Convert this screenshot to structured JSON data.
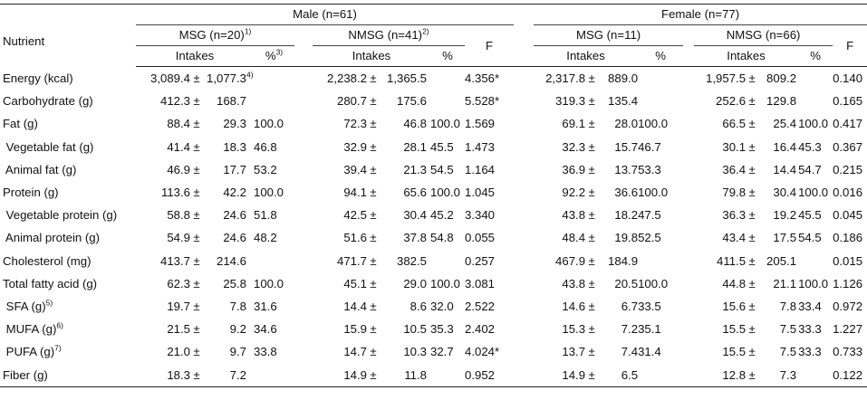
{
  "headers": {
    "nutrient": "Nutrient",
    "male": "Male (n=61)",
    "female": "Female (n=77)",
    "msg_male": "MSG (n=20)",
    "msg_male_sup": "1)",
    "nmsg_male": "NMSG (n=41)",
    "nmsg_male_sup": "2)",
    "msg_female": "MSG (n=11)",
    "nmsg_female": "NMSG (n=66)",
    "f": "F",
    "intakes": "Intakes",
    "pct": "%",
    "pct_sup": "3)"
  },
  "rows": [
    {
      "label": "Energy (kcal)",
      "label_sup": "",
      "m_msg_mean": "3,089.4",
      "m_msg_sd": "1,077.3",
      "m_msg_sd_sup": "4)",
      "m_msg_pct": "",
      "m_nmsg_mean": "2,238.2",
      "m_nmsg_sd": "1,365.5",
      "m_nmsg_pct": "",
      "m_f": "4.356*",
      "f_msg_mean": "2,317.8",
      "f_msg_sd": "889.0",
      "f_msg_pct": "",
      "f_nmsg_mean": "1,957.5",
      "f_nmsg_sd": "809.2",
      "f_nmsg_pct": "",
      "f_f": "0.140"
    },
    {
      "label": "Carbohydrate (g)",
      "label_sup": "",
      "m_msg_mean": "412.3",
      "m_msg_sd": "168.7",
      "m_msg_sd_sup": "",
      "m_msg_pct": "",
      "m_nmsg_mean": "280.7",
      "m_nmsg_sd": "175.6",
      "m_nmsg_pct": "",
      "m_f": "5.528*",
      "f_msg_mean": "319.3",
      "f_msg_sd": "135.4",
      "f_msg_pct": "",
      "f_nmsg_mean": "252.6",
      "f_nmsg_sd": "129.8",
      "f_nmsg_pct": "",
      "f_f": "0.165"
    },
    {
      "label": "Fat (g)",
      "label_sup": "",
      "m_msg_mean": "88.4",
      "m_msg_sd": "29.3",
      "m_msg_sd_sup": "",
      "m_msg_pct": "100.0",
      "m_nmsg_mean": "72.3",
      "m_nmsg_sd": "46.8",
      "m_nmsg_pct": "100.0",
      "m_f": "1.569",
      "f_msg_mean": "69.1",
      "f_msg_sd": "28.0",
      "f_msg_pct": "100.0",
      "f_nmsg_mean": "66.5",
      "f_nmsg_sd": "25.4",
      "f_nmsg_pct": "100.0",
      "f_f": "0.417"
    },
    {
      "label": " Vegetable fat (g)",
      "label_sup": "",
      "m_msg_mean": "41.4",
      "m_msg_sd": "18.3",
      "m_msg_sd_sup": "",
      "m_msg_pct": "46.8",
      "m_nmsg_mean": "32.9",
      "m_nmsg_sd": "28.1",
      "m_nmsg_pct": "45.5",
      "m_f": "1.473",
      "f_msg_mean": "32.3",
      "f_msg_sd": "15.7",
      "f_msg_pct": "46.7",
      "f_nmsg_mean": "30.1",
      "f_nmsg_sd": "16.4",
      "f_nmsg_pct": "45.3",
      "f_f": "0.367"
    },
    {
      "label": " Animal fat (g)",
      "label_sup": "",
      "m_msg_mean": "46.9",
      "m_msg_sd": "17.7",
      "m_msg_sd_sup": "",
      "m_msg_pct": "53.2",
      "m_nmsg_mean": "39.4",
      "m_nmsg_sd": "21.3",
      "m_nmsg_pct": "54.5",
      "m_f": "1.164",
      "f_msg_mean": "36.9",
      "f_msg_sd": "13.7",
      "f_msg_pct": "53.3",
      "f_nmsg_mean": "36.4",
      "f_nmsg_sd": "14.4",
      "f_nmsg_pct": "54.7",
      "f_f": "0.215"
    },
    {
      "label": "Protein (g)",
      "label_sup": "",
      "m_msg_mean": "113.6",
      "m_msg_sd": "42.2",
      "m_msg_sd_sup": "",
      "m_msg_pct": "100.0",
      "m_nmsg_mean": "94.1",
      "m_nmsg_sd": "65.6",
      "m_nmsg_pct": "100.0",
      "m_f": "1.045",
      "f_msg_mean": "92.2",
      "f_msg_sd": "36.6",
      "f_msg_pct": "100.0",
      "f_nmsg_mean": "79.8",
      "f_nmsg_sd": "30.4",
      "f_nmsg_pct": "100.0",
      "f_f": "0.016"
    },
    {
      "label": " Vegetable protein (g)",
      "label_sup": "",
      "m_msg_mean": "58.8",
      "m_msg_sd": "24.6",
      "m_msg_sd_sup": "",
      "m_msg_pct": "51.8",
      "m_nmsg_mean": "42.5",
      "m_nmsg_sd": "30.4",
      "m_nmsg_pct": "45.2",
      "m_f": "3.340",
      "f_msg_mean": "43.8",
      "f_msg_sd": "18.2",
      "f_msg_pct": "47.5",
      "f_nmsg_mean": "36.3",
      "f_nmsg_sd": "19.2",
      "f_nmsg_pct": "45.5",
      "f_f": "0.045"
    },
    {
      "label": " Animal protein (g)",
      "label_sup": "",
      "m_msg_mean": "54.9",
      "m_msg_sd": "24.6",
      "m_msg_sd_sup": "",
      "m_msg_pct": "48.2",
      "m_nmsg_mean": "51.6",
      "m_nmsg_sd": "37.8",
      "m_nmsg_pct": "54.8",
      "m_f": "0.055",
      "f_msg_mean": "48.4",
      "f_msg_sd": "19.8",
      "f_msg_pct": "52.5",
      "f_nmsg_mean": "43.4",
      "f_nmsg_sd": "17.5",
      "f_nmsg_pct": "54.5",
      "f_f": "0.186"
    },
    {
      "label": "Cholesterol (mg)",
      "label_sup": "",
      "m_msg_mean": "413.7",
      "m_msg_sd": "214.6",
      "m_msg_sd_sup": "",
      "m_msg_pct": "",
      "m_nmsg_mean": "471.7",
      "m_nmsg_sd": "382.5",
      "m_nmsg_pct": "",
      "m_f": "0.257",
      "f_msg_mean": "467.9",
      "f_msg_sd": "184.9",
      "f_msg_pct": "",
      "f_nmsg_mean": "411.5",
      "f_nmsg_sd": "205.1",
      "f_nmsg_pct": "",
      "f_f": "0.015"
    },
    {
      "label": "Total fatty acid (g)",
      "label_sup": "",
      "m_msg_mean": "62.3",
      "m_msg_sd": "25.8",
      "m_msg_sd_sup": "",
      "m_msg_pct": "100.0",
      "m_nmsg_mean": "45.1",
      "m_nmsg_sd": "29.0",
      "m_nmsg_pct": "100.0",
      "m_f": "3.081",
      "f_msg_mean": "43.8",
      "f_msg_sd": "20.5",
      "f_msg_pct": "100.0",
      "f_nmsg_mean": "44.8",
      "f_nmsg_sd": "21.1",
      "f_nmsg_pct": "100.0",
      "f_f": "1.126"
    },
    {
      "label": " SFA (g)",
      "label_sup": "5)",
      "m_msg_mean": "19.7",
      "m_msg_sd": "7.8",
      "m_msg_sd_sup": "",
      "m_msg_pct": "31.6",
      "m_nmsg_mean": "14.4",
      "m_nmsg_sd": "8.6",
      "m_nmsg_pct": "32.0",
      "m_f": "2.522",
      "f_msg_mean": "14.6",
      "f_msg_sd": "6.7",
      "f_msg_pct": "33.5",
      "f_nmsg_mean": "15.6",
      "f_nmsg_sd": "7.8",
      "f_nmsg_pct": "33.4",
      "f_f": "0.972"
    },
    {
      "label": " MUFA (g)",
      "label_sup": "6)",
      "m_msg_mean": "21.5",
      "m_msg_sd": "9.2",
      "m_msg_sd_sup": "",
      "m_msg_pct": "34.6",
      "m_nmsg_mean": "15.9",
      "m_nmsg_sd": "10.5",
      "m_nmsg_pct": "35.3",
      "m_f": "2.402",
      "f_msg_mean": "15.3",
      "f_msg_sd": "7.2",
      "f_msg_pct": "35.1",
      "f_nmsg_mean": "15.5",
      "f_nmsg_sd": "7.5",
      "f_nmsg_pct": "33.3",
      "f_f": "1.227"
    },
    {
      "label": " PUFA (g)",
      "label_sup": "7)",
      "m_msg_mean": "21.0",
      "m_msg_sd": "9.7",
      "m_msg_sd_sup": "",
      "m_msg_pct": "33.8",
      "m_nmsg_mean": "14.7",
      "m_nmsg_sd": "10.3",
      "m_nmsg_pct": "32.7",
      "m_f": "4.024*",
      "f_msg_mean": "13.7",
      "f_msg_sd": "7.4",
      "f_msg_pct": "31.4",
      "f_nmsg_mean": "15.5",
      "f_nmsg_sd": "7.5",
      "f_nmsg_pct": "33.3",
      "f_f": "0.733"
    },
    {
      "label": "Fiber (g)",
      "label_sup": "",
      "m_msg_mean": "18.3",
      "m_msg_sd": "7.2",
      "m_msg_sd_sup": "",
      "m_msg_pct": "",
      "m_nmsg_mean": "14.9",
      "m_nmsg_sd": "11.8",
      "m_nmsg_pct": "",
      "m_f": "0.952",
      "f_msg_mean": "14.9",
      "f_msg_sd": "6.5",
      "f_msg_pct": "",
      "f_nmsg_mean": "12.8",
      "f_nmsg_sd": "7.3",
      "f_nmsg_pct": "",
      "f_f": "0.122"
    }
  ]
}
